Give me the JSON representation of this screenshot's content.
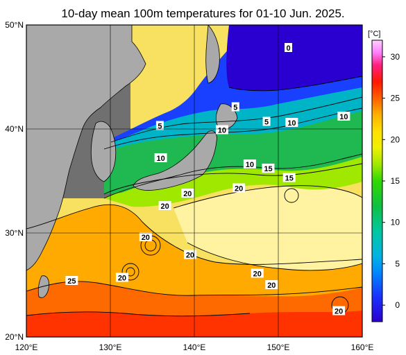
{
  "title": "10-day mean 100m temperatures for 01-10 Jun. 2025.",
  "map": {
    "lon_ticks": [
      "120°E",
      "130°E",
      "140°E",
      "150°E",
      "160°E"
    ],
    "lat_ticks": [
      "50°N",
      "40°N",
      "30°N",
      "20°N"
    ],
    "contour_labels": [
      {
        "text": "0",
        "lon": 151.2,
        "lat": 47.8
      },
      {
        "text": "5",
        "lon": 144.9,
        "lat": 42.1
      },
      {
        "text": "5",
        "lon": 135.9,
        "lat": 40.3
      },
      {
        "text": "5",
        "lon": 148.6,
        "lat": 40.7
      },
      {
        "text": "10",
        "lon": 143.3,
        "lat": 39.9
      },
      {
        "text": "10",
        "lon": 151.6,
        "lat": 40.6
      },
      {
        "text": "10",
        "lon": 157.8,
        "lat": 41.2
      },
      {
        "text": "10",
        "lon": 136.0,
        "lat": 37.2
      },
      {
        "text": "10",
        "lon": 146.6,
        "lat": 36.6
      },
      {
        "text": "15",
        "lon": 148.8,
        "lat": 36.2
      },
      {
        "text": "15",
        "lon": 151.3,
        "lat": 35.3
      },
      {
        "text": "20",
        "lon": 139.2,
        "lat": 33.8
      },
      {
        "text": "20",
        "lon": 145.3,
        "lat": 34.3
      },
      {
        "text": "20",
        "lon": 136.5,
        "lat": 32.6
      },
      {
        "text": "20",
        "lon": 134.2,
        "lat": 29.6
      },
      {
        "text": "20",
        "lon": 139.5,
        "lat": 27.9
      },
      {
        "text": "20",
        "lon": 131.4,
        "lat": 25.7
      },
      {
        "text": "20",
        "lon": 147.5,
        "lat": 26.1
      },
      {
        "text": "20",
        "lon": 149.2,
        "lat": 25.0
      },
      {
        "text": "20",
        "lon": 157.2,
        "lat": 22.5
      },
      {
        "text": "25",
        "lon": 125.4,
        "lat": 25.4
      }
    ]
  },
  "colorbar": {
    "unit": "[°C]",
    "ticks": [
      "0",
      "5",
      "10",
      "15",
      "20",
      "25",
      "30"
    ],
    "tick_values": [
      0,
      5,
      10,
      15,
      20,
      25,
      30
    ],
    "range": [
      -2,
      32
    ],
    "stops": [
      {
        "v": -2,
        "color": "#2a00d0"
      },
      {
        "v": 1,
        "color": "#1a30ff"
      },
      {
        "v": 4,
        "color": "#0088ff"
      },
      {
        "v": 6,
        "color": "#00b4e0"
      },
      {
        "v": 9,
        "color": "#00c8a0"
      },
      {
        "v": 12,
        "color": "#10c040"
      },
      {
        "v": 15,
        "color": "#30d800"
      },
      {
        "v": 17,
        "color": "#a0e800"
      },
      {
        "v": 19,
        "color": "#f0f000"
      },
      {
        "v": 21,
        "color": "#ffe000"
      },
      {
        "v": 23,
        "color": "#ffb000"
      },
      {
        "v": 25,
        "color": "#ff6000"
      },
      {
        "v": 27,
        "color": "#ff1800"
      },
      {
        "v": 29,
        "color": "#ff2080"
      },
      {
        "v": 30.5,
        "color": "#ff80ff"
      },
      {
        "v": 32,
        "color": "#ffd0ff"
      }
    ]
  },
  "colors": {
    "land": "#a9a9a9",
    "frame": "#000000"
  }
}
